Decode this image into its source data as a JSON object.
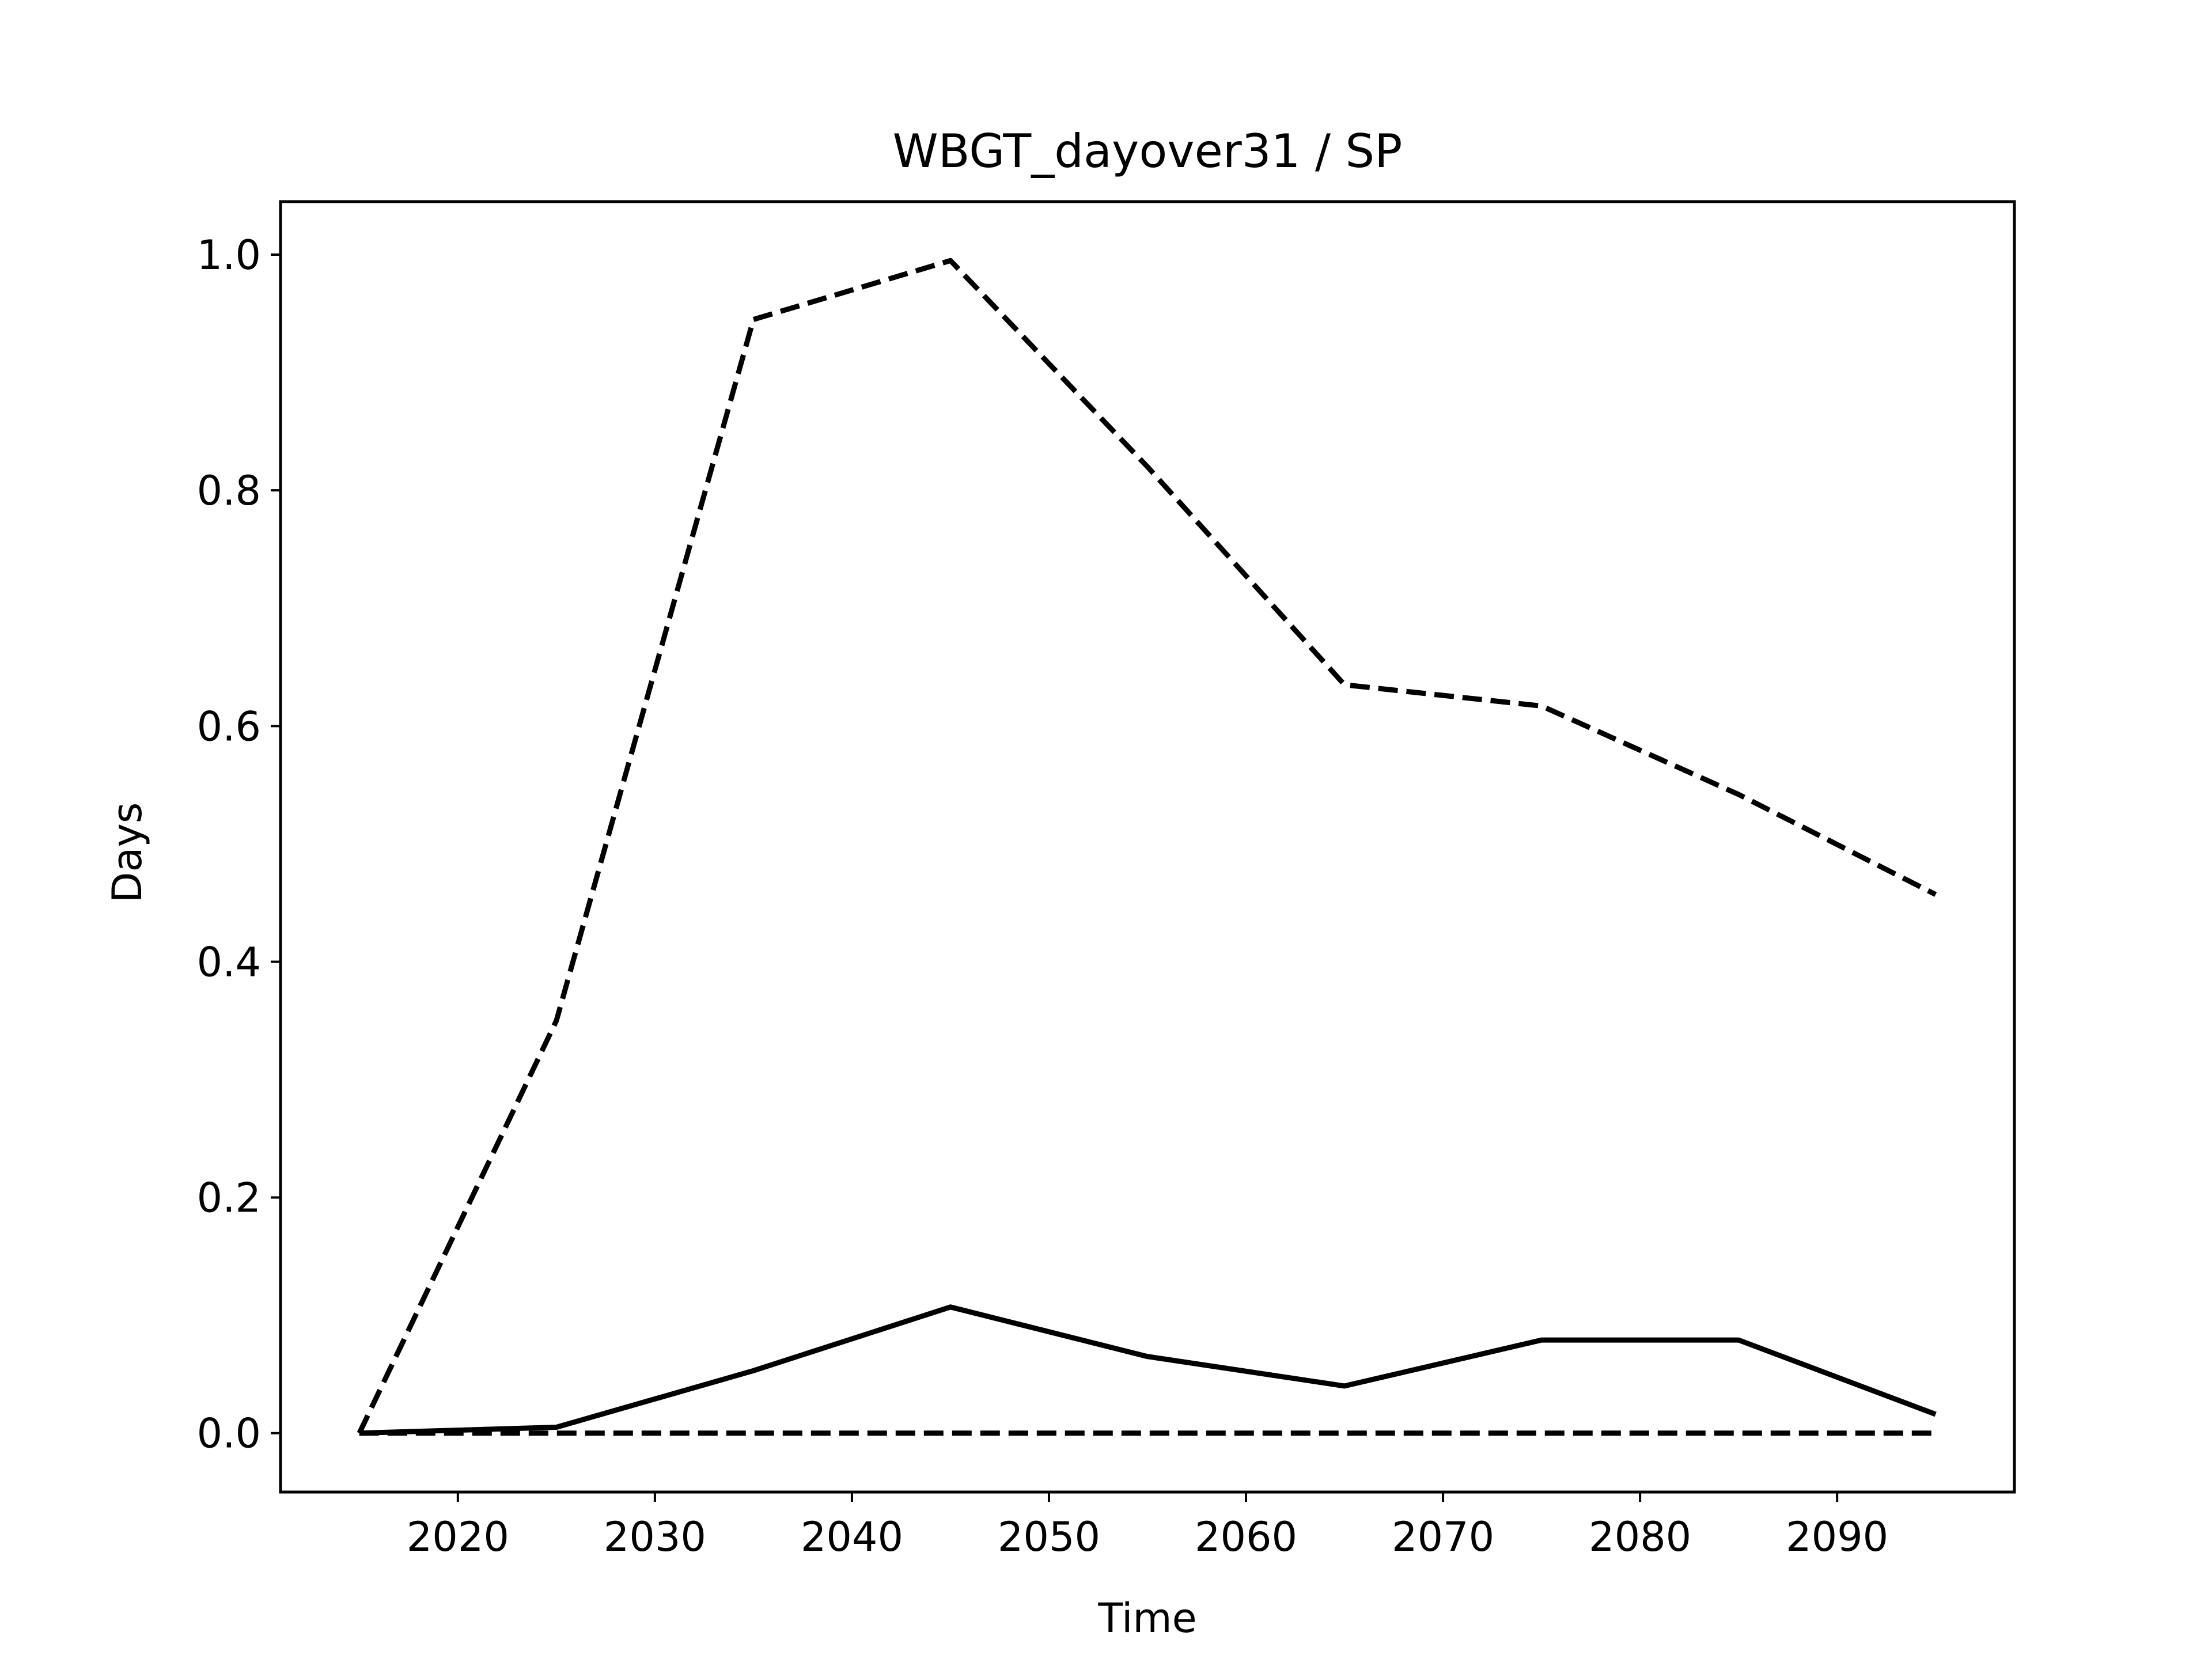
{
  "chart_data": {
    "type": "line",
    "title": "WBGT_dayover31 / SP",
    "xlabel": "Time",
    "ylabel": "Days",
    "xlim": [
      2011,
      2099
    ],
    "ylim": [
      -0.05,
      1.045
    ],
    "xticks": [
      2020,
      2030,
      2040,
      2050,
      2060,
      2070,
      2080,
      2090
    ],
    "xtick_labels": [
      "2020",
      "2030",
      "2040",
      "2050",
      "2060",
      "2070",
      "2080",
      "2090"
    ],
    "yticks": [
      0.0,
      0.2,
      0.4,
      0.6,
      0.8,
      1.0
    ],
    "ytick_labels": [
      "0.0",
      "0.2",
      "0.4",
      "0.6",
      "0.8",
      "1.0"
    ],
    "grid": false,
    "legend": "none",
    "x": [
      2015,
      2025,
      2035,
      2045,
      2055,
      2065,
      2075,
      2085,
      2095
    ],
    "series": [
      {
        "style": "dashed",
        "color": "#000000",
        "values": [
          0.0,
          0.35,
          0.945,
          0.995,
          0.82,
          0.635,
          0.617,
          0.542,
          0.457
        ]
      },
      {
        "style": "solid",
        "color": "#000000",
        "values": [
          0.0,
          0.005,
          0.053,
          0.107,
          0.065,
          0.04,
          0.079,
          0.079,
          0.016
        ]
      },
      {
        "style": "dashed",
        "color": "#000000",
        "values": [
          0.0,
          0.0,
          0.0,
          0.0,
          0.0,
          0.0,
          0.0,
          0.0,
          0.0
        ]
      }
    ]
  }
}
